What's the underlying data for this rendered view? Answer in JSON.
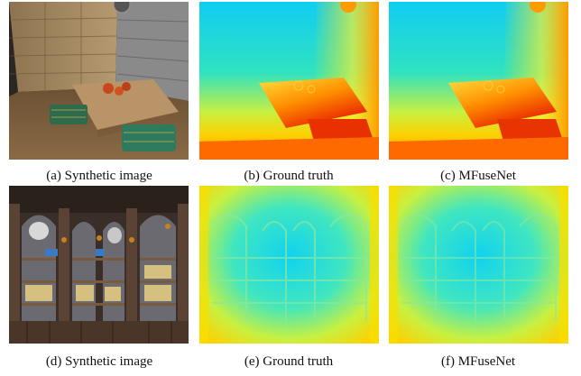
{
  "figure": {
    "panels": [
      {
        "caption": "(a) Synthetic image",
        "kind": "photo"
      },
      {
        "caption": "(b) Ground truth",
        "kind": "depth-map"
      },
      {
        "caption": "(c) MFuseNet",
        "kind": "depth-map"
      },
      {
        "caption": "(d) Synthetic image",
        "kind": "photo"
      },
      {
        "caption": "(e) Ground truth",
        "kind": "depth-map"
      },
      {
        "caption": "(f) MFuseNet",
        "kind": "depth-map"
      }
    ]
  },
  "colors": {
    "near": "#e01800",
    "mid": "#ffd800",
    "far": "#10d0f0"
  }
}
